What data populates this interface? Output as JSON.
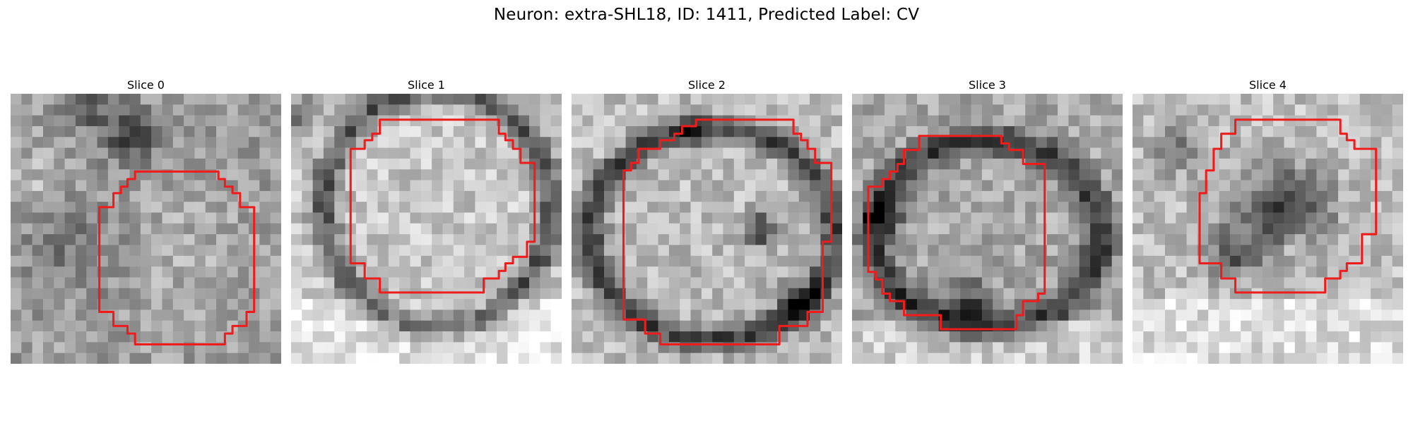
{
  "figure": {
    "title": "Neuron: extra-SHL18, ID: 1411, Predicted Label: CV"
  },
  "colors": {
    "outline": "#ee1c1c",
    "background": "#ffffff"
  },
  "panels": [
    {
      "title": "Slice 0",
      "style": "fuzzy-light"
    },
    {
      "title": "Slice 1",
      "style": "ring-light"
    },
    {
      "title": "Slice 2",
      "style": "ring-light-dark-spot"
    },
    {
      "title": "Slice 3",
      "style": "ring-medium"
    },
    {
      "title": "Slice 4",
      "style": "dark-core"
    }
  ]
}
